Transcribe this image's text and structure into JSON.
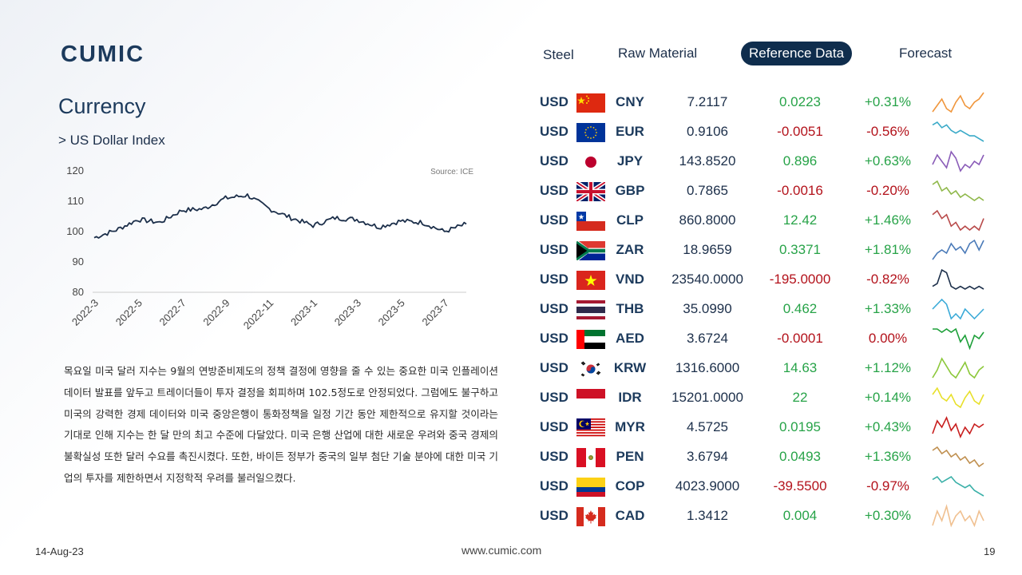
{
  "brand": {
    "logo_text": "CUMIC"
  },
  "nav": {
    "tabs": [
      {
        "label": "Steel",
        "active": false
      },
      {
        "label": "Raw Material",
        "active": false
      },
      {
        "label": "Reference Data",
        "active": true
      },
      {
        "label": "Forecast",
        "active": false
      }
    ]
  },
  "page": {
    "title": "Currency",
    "subtitle": "> US Dollar Index"
  },
  "chart_data": {
    "type": "line",
    "title": "",
    "xlabel": "",
    "ylabel": "",
    "source_note": "Source: ICE",
    "ylim": [
      80,
      120
    ],
    "yticks": [
      120,
      110,
      100,
      90,
      80
    ],
    "xtick_labels": [
      "2022-3",
      "2022-5",
      "2022-7",
      "2022-9",
      "2022-11",
      "2023-1",
      "2023-3",
      "2023-5",
      "2023-7"
    ],
    "grid": false,
    "series": [
      {
        "x": [
          "2022-3",
          "2022-4",
          "2022-5",
          "2022-6",
          "2022-7",
          "2022-8",
          "2022-9",
          "2022-10",
          "2022-11",
          "2022-12",
          "2023-1",
          "2023-2",
          "2023-3",
          "2023-4",
          "2023-5",
          "2023-6",
          "2023-7",
          "2023-8"
        ],
        "values": [
          98,
          100.5,
          104,
          103,
          107,
          107.5,
          111,
          112,
          107.5,
          104.5,
          102,
          104.5,
          104,
          101.5,
          103.5,
          103,
          100,
          102.5
        ],
        "color": "#1c2f4a"
      }
    ]
  },
  "commentary": "목요일 미국 달러 지수는 9월의 연방준비제도의 정책 결정에 영향을 줄 수 있는 중요한 미국 인플레이션 데이터 발표를 앞두고 트레이더들이 투자 결정을 회피하며 102.5정도로 안정되었다. 그럼에도 불구하고 미국의 강력한 경제 데이터와 미국 중앙은행이 통화정책을 일정 기간 동안 제한적으로 유지할 것이라는 기대로 인해 지수는 한 달 만의 최고 수준에 다달았다. 미국 은행 산업에 대한 새로운 우려와 중국 경제의 불확실성 또한 달러 수요를 촉진시켰다. 또한, 바이든 정부가 중국의 일부 첨단 기술 분야에 대한 미국 기업의 투자를 제한하면서 지정학적 우려를 불러일으켰다.",
  "fx": [
    {
      "base": "USD",
      "code": "CNY",
      "flag": "cn-flag-icon",
      "rate": "7.2117",
      "change": "0.0223",
      "pct": "+0.31%",
      "dir": "pos",
      "spark_color": "#f0963c",
      "spark": [
        3,
        5,
        7,
        4,
        3,
        6,
        8,
        5,
        4,
        6,
        7,
        9
      ]
    },
    {
      "base": "USD",
      "code": "EUR",
      "flag": "eu-flag-icon",
      "rate": "0.9106",
      "change": "-0.0051",
      "pct": "-0.56%",
      "dir": "neg",
      "spark_color": "#3aaac8",
      "spark": [
        8,
        9,
        7,
        8,
        6,
        5,
        6,
        5,
        4,
        4,
        3,
        2
      ]
    },
    {
      "base": "USD",
      "code": "JPY",
      "flag": "jp-flag-icon",
      "rate": "143.8520",
      "change": "0.896",
      "pct": "+0.63%",
      "dir": "pos",
      "spark_color": "#8a5cb8",
      "spark": [
        4,
        7,
        5,
        3,
        8,
        6,
        2,
        4,
        3,
        5,
        4,
        7
      ]
    },
    {
      "base": "USD",
      "code": "GBP",
      "flag": "gb-flag-icon",
      "rate": "0.7865",
      "change": "-0.0016",
      "pct": "-0.20%",
      "dir": "neg",
      "spark_color": "#8fb84a",
      "spark": [
        7,
        8,
        5,
        6,
        4,
        5,
        3,
        4,
        3,
        2,
        3,
        2
      ]
    },
    {
      "base": "USD",
      "code": "CLP",
      "flag": "cl-flag-icon",
      "rate": "860.8000",
      "change": "12.42",
      "pct": "+1.46%",
      "dir": "pos",
      "spark_color": "#b84a4a",
      "spark": [
        6,
        7,
        5,
        6,
        3,
        4,
        2,
        3,
        2,
        3,
        2,
        5
      ]
    },
    {
      "base": "USD",
      "code": "ZAR",
      "flag": "za-flag-icon",
      "rate": "18.9659",
      "change": "0.3371",
      "pct": "+1.81%",
      "dir": "pos",
      "spark_color": "#4a7ab8",
      "spark": [
        2,
        4,
        5,
        4,
        7,
        5,
        6,
        4,
        7,
        8,
        5,
        8
      ]
    },
    {
      "base": "USD",
      "code": "VND",
      "flag": "vn-flag-icon",
      "rate": "23540.0000",
      "change": "-195.0000",
      "pct": "-0.82%",
      "dir": "neg",
      "spark_color": "#1c2f4a",
      "spark": [
        3,
        4,
        9,
        8,
        3,
        2,
        3,
        2,
        3,
        2,
        3,
        2
      ]
    },
    {
      "base": "USD",
      "code": "THB",
      "flag": "th-flag-icon",
      "rate": "35.0990",
      "change": "0.462",
      "pct": "+1.33%",
      "dir": "pos",
      "spark_color": "#3aaad8",
      "spark": [
        5,
        6,
        7,
        6,
        3,
        4,
        3,
        5,
        4,
        3,
        4,
        5
      ]
    },
    {
      "base": "USD",
      "code": "AED",
      "flag": "ae-flag-icon",
      "rate": "3.6724",
      "change": "-0.0001",
      "pct": "0.00%",
      "dir": "zero",
      "spark_color": "#1ea03a",
      "spark": [
        8,
        8,
        7,
        8,
        7,
        8,
        4,
        6,
        2,
        6,
        5,
        7
      ]
    },
    {
      "base": "USD",
      "code": "KRW",
      "flag": "kr-flag-icon",
      "rate": "1316.6000",
      "change": "14.63",
      "pct": "+1.12%",
      "dir": "pos",
      "spark_color": "#8cc83a",
      "spark": [
        3,
        5,
        8,
        6,
        4,
        3,
        5,
        7,
        4,
        3,
        5,
        6
      ]
    },
    {
      "base": "USD",
      "code": "IDR",
      "flag": "id-flag-icon",
      "rate": "15201.0000",
      "change": "22",
      "pct": "+0.14%",
      "dir": "pos",
      "spark_color": "#e8e02a",
      "spark": [
        6,
        8,
        5,
        4,
        6,
        3,
        2,
        5,
        7,
        4,
        3,
        6
      ]
    },
    {
      "base": "USD",
      "code": "MYR",
      "flag": "my-flag-icon",
      "rate": "4.5725",
      "change": "0.0195",
      "pct": "+0.43%",
      "dir": "pos",
      "spark_color": "#c81e1e",
      "spark": [
        3,
        7,
        5,
        8,
        4,
        6,
        2,
        5,
        3,
        6,
        5,
        6
      ]
    },
    {
      "base": "USD",
      "code": "PEN",
      "flag": "pe-flag-icon",
      "rate": "3.6794",
      "change": "0.0493",
      "pct": "+1.36%",
      "dir": "pos",
      "spark_color": "#c09050",
      "spark": [
        7,
        8,
        6,
        7,
        5,
        6,
        4,
        5,
        3,
        4,
        2,
        3
      ]
    },
    {
      "base": "USD",
      "code": "COP",
      "flag": "co-flag-icon",
      "rate": "4023.9000",
      "change": "-39.5500",
      "pct": "-0.97%",
      "dir": "neg",
      "spark_color": "#3ab0a8",
      "spark": [
        7,
        8,
        6,
        7,
        8,
        6,
        5,
        4,
        5,
        3,
        2,
        1
      ]
    },
    {
      "base": "USD",
      "code": "CAD",
      "flag": "ca-flag-icon",
      "rate": "1.3412",
      "change": "0.004",
      "pct": "+0.30%",
      "dir": "pos",
      "spark_color": "#f0c090",
      "spark": [
        3,
        6,
        4,
        7,
        3,
        5,
        6,
        4,
        5,
        3,
        6,
        4
      ]
    }
  ],
  "footer": {
    "date": "14-Aug-23",
    "url": "www.cumic.com",
    "page": "19"
  }
}
